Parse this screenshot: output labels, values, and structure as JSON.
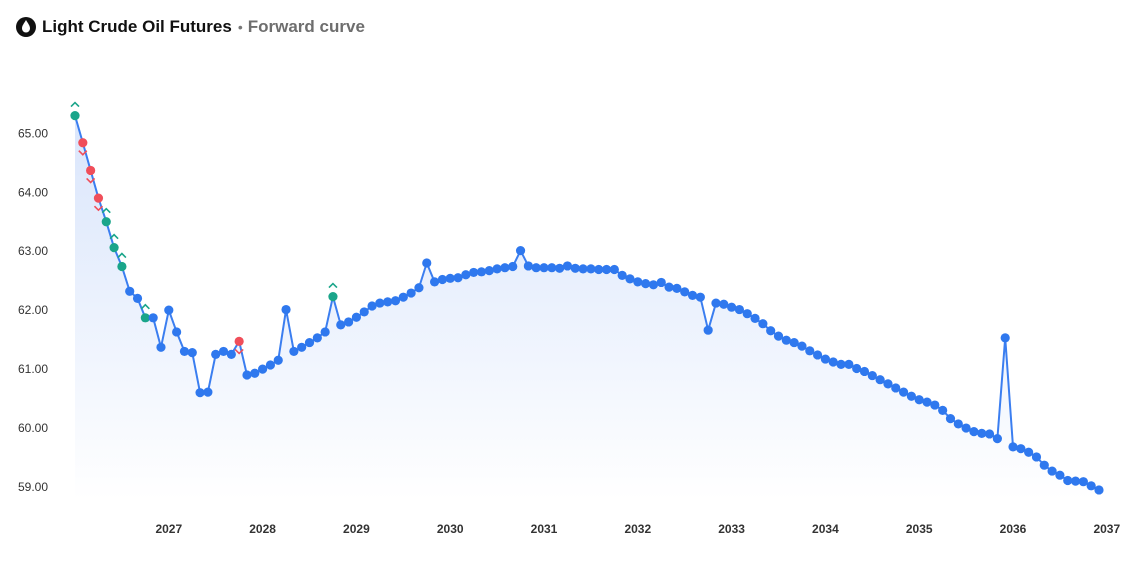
{
  "header": {
    "title": "Light Crude Oil Futures",
    "separator": "•",
    "subtitle": "Forward curve",
    "icon": "oil-drop-icon"
  },
  "colors": {
    "line": "#3b7ef0",
    "point": "#2f78ee",
    "up": "#1aa58a",
    "down": "#f04e5a",
    "area_top": "#d6e3fb",
    "area_bottom": "#ffffff"
  },
  "chart_data": {
    "type": "line",
    "title": "Light Crude Oil Futures",
    "subtitle": "Forward curve",
    "x_start": "2026-01",
    "x_unit": "month",
    "xlim": [
      "2026-01",
      "2037-02"
    ],
    "ylim": [
      58.8,
      65.7
    ],
    "yticks": [
      "59.00",
      "60.00",
      "61.00",
      "62.00",
      "63.00",
      "64.00",
      "65.00"
    ],
    "xticks": [
      {
        "label": "2027",
        "date": "2027-01"
      },
      {
        "label": "2028",
        "date": "2028-01"
      },
      {
        "label": "2029",
        "date": "2029-01"
      },
      {
        "label": "2030",
        "date": "2030-01"
      },
      {
        "label": "2031",
        "date": "2031-01"
      },
      {
        "label": "2032",
        "date": "2032-01"
      },
      {
        "label": "2033",
        "date": "2033-01"
      },
      {
        "label": "2034",
        "date": "2034-01"
      },
      {
        "label": "2035",
        "date": "2035-01"
      },
      {
        "label": "2036",
        "date": "2036-01"
      },
      {
        "label": "2037",
        "date": "2037-01"
      }
    ],
    "grid": false,
    "legend": "none",
    "series": [
      {
        "values": [
          65.3,
          64.84,
          64.37,
          63.9,
          63.5,
          63.06,
          62.74,
          62.32,
          62.2,
          61.87,
          61.87,
          61.37,
          62.0,
          61.63,
          61.3,
          61.28,
          60.6,
          60.61,
          61.25,
          61.3,
          61.25,
          61.47,
          60.9,
          60.93,
          61.0,
          61.07,
          61.15,
          62.01,
          61.3,
          61.37,
          61.45,
          61.53,
          61.63,
          62.23,
          61.75,
          61.8,
          61.88,
          61.97,
          62.07,
          62.12,
          62.14,
          62.16,
          62.22,
          62.29,
          62.38,
          62.8,
          62.48,
          62.52,
          62.54,
          62.55,
          62.6,
          62.64,
          62.65,
          62.67,
          62.7,
          62.72,
          62.74,
          63.01,
          62.75,
          62.72,
          62.72,
          62.72,
          62.71,
          62.75,
          62.71,
          62.7,
          62.7,
          62.69,
          62.69,
          62.69,
          62.59,
          62.53,
          62.48,
          62.45,
          62.43,
          62.47,
          62.39,
          62.37,
          62.31,
          62.25,
          62.22,
          61.66,
          62.12,
          62.1,
          62.05,
          62.01,
          61.94,
          61.86,
          61.77,
          61.65,
          61.56,
          61.49,
          61.45,
          61.39,
          61.31,
          61.24,
          61.17,
          61.12,
          61.08,
          61.08,
          61.01,
          60.96,
          60.89,
          60.82,
          60.75,
          60.68,
          60.61,
          60.54,
          60.48,
          60.44,
          60.39,
          60.3,
          60.16,
          60.07,
          60.0,
          59.94,
          59.91,
          59.9,
          59.82,
          61.53,
          59.68,
          59.65,
          59.59,
          59.51,
          59.37,
          59.27,
          59.2,
          59.11,
          59.1,
          59.09,
          59.02,
          58.95
        ]
      }
    ],
    "markers": [
      {
        "index": 0,
        "direction": "up"
      },
      {
        "index": 1,
        "direction": "down"
      },
      {
        "index": 2,
        "direction": "down"
      },
      {
        "index": 3,
        "direction": "down"
      },
      {
        "index": 4,
        "direction": "up"
      },
      {
        "index": 5,
        "direction": "up"
      },
      {
        "index": 6,
        "direction": "up"
      },
      {
        "index": 9,
        "direction": "up"
      },
      {
        "index": 21,
        "direction": "down"
      },
      {
        "index": 33,
        "direction": "up"
      }
    ]
  }
}
